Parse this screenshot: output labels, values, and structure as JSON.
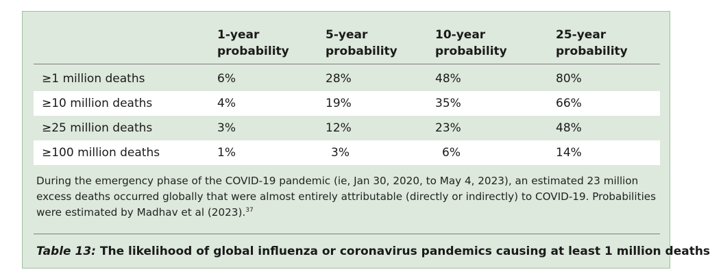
{
  "table": {
    "headers": [
      [
        "",
        ""
      ],
      [
        "1-year",
        "probability"
      ],
      [
        "5-year",
        "probability"
      ],
      [
        "10-year",
        "probability"
      ],
      [
        "25-year",
        "probability"
      ]
    ],
    "rows": [
      [
        "≥1 million deaths",
        "6%",
        "28%",
        "48%",
        "80%"
      ],
      [
        "≥10 million deaths",
        "4%",
        "19%",
        "35%",
        "66%"
      ],
      [
        "≥25 million deaths",
        "3%",
        "12%",
        "23%",
        "48%"
      ],
      [
        "≥100 million deaths",
        "1%",
        "3%",
        "6%",
        "14%"
      ]
    ]
  },
  "note": {
    "text": "During the emergency phase of the COVID-19 pandemic (ie, Jan 30, 2020, to May 4, 2023), an estimated 23 million excess deaths occurred globally that were almost entirely attributable (directly or indirectly) to COVID-19. Probabilities were estimated by Madhav et al (2023).",
    "ref": "37"
  },
  "caption": {
    "label": "Table 13:",
    "text": " The likelihood of global influenza or coronavirus pandemics causing at least 1 million deaths"
  },
  "colors": {
    "panel_bg": "#dde9dc",
    "panel_border": "#9fbf9d",
    "row_alt": "#ffffff"
  }
}
